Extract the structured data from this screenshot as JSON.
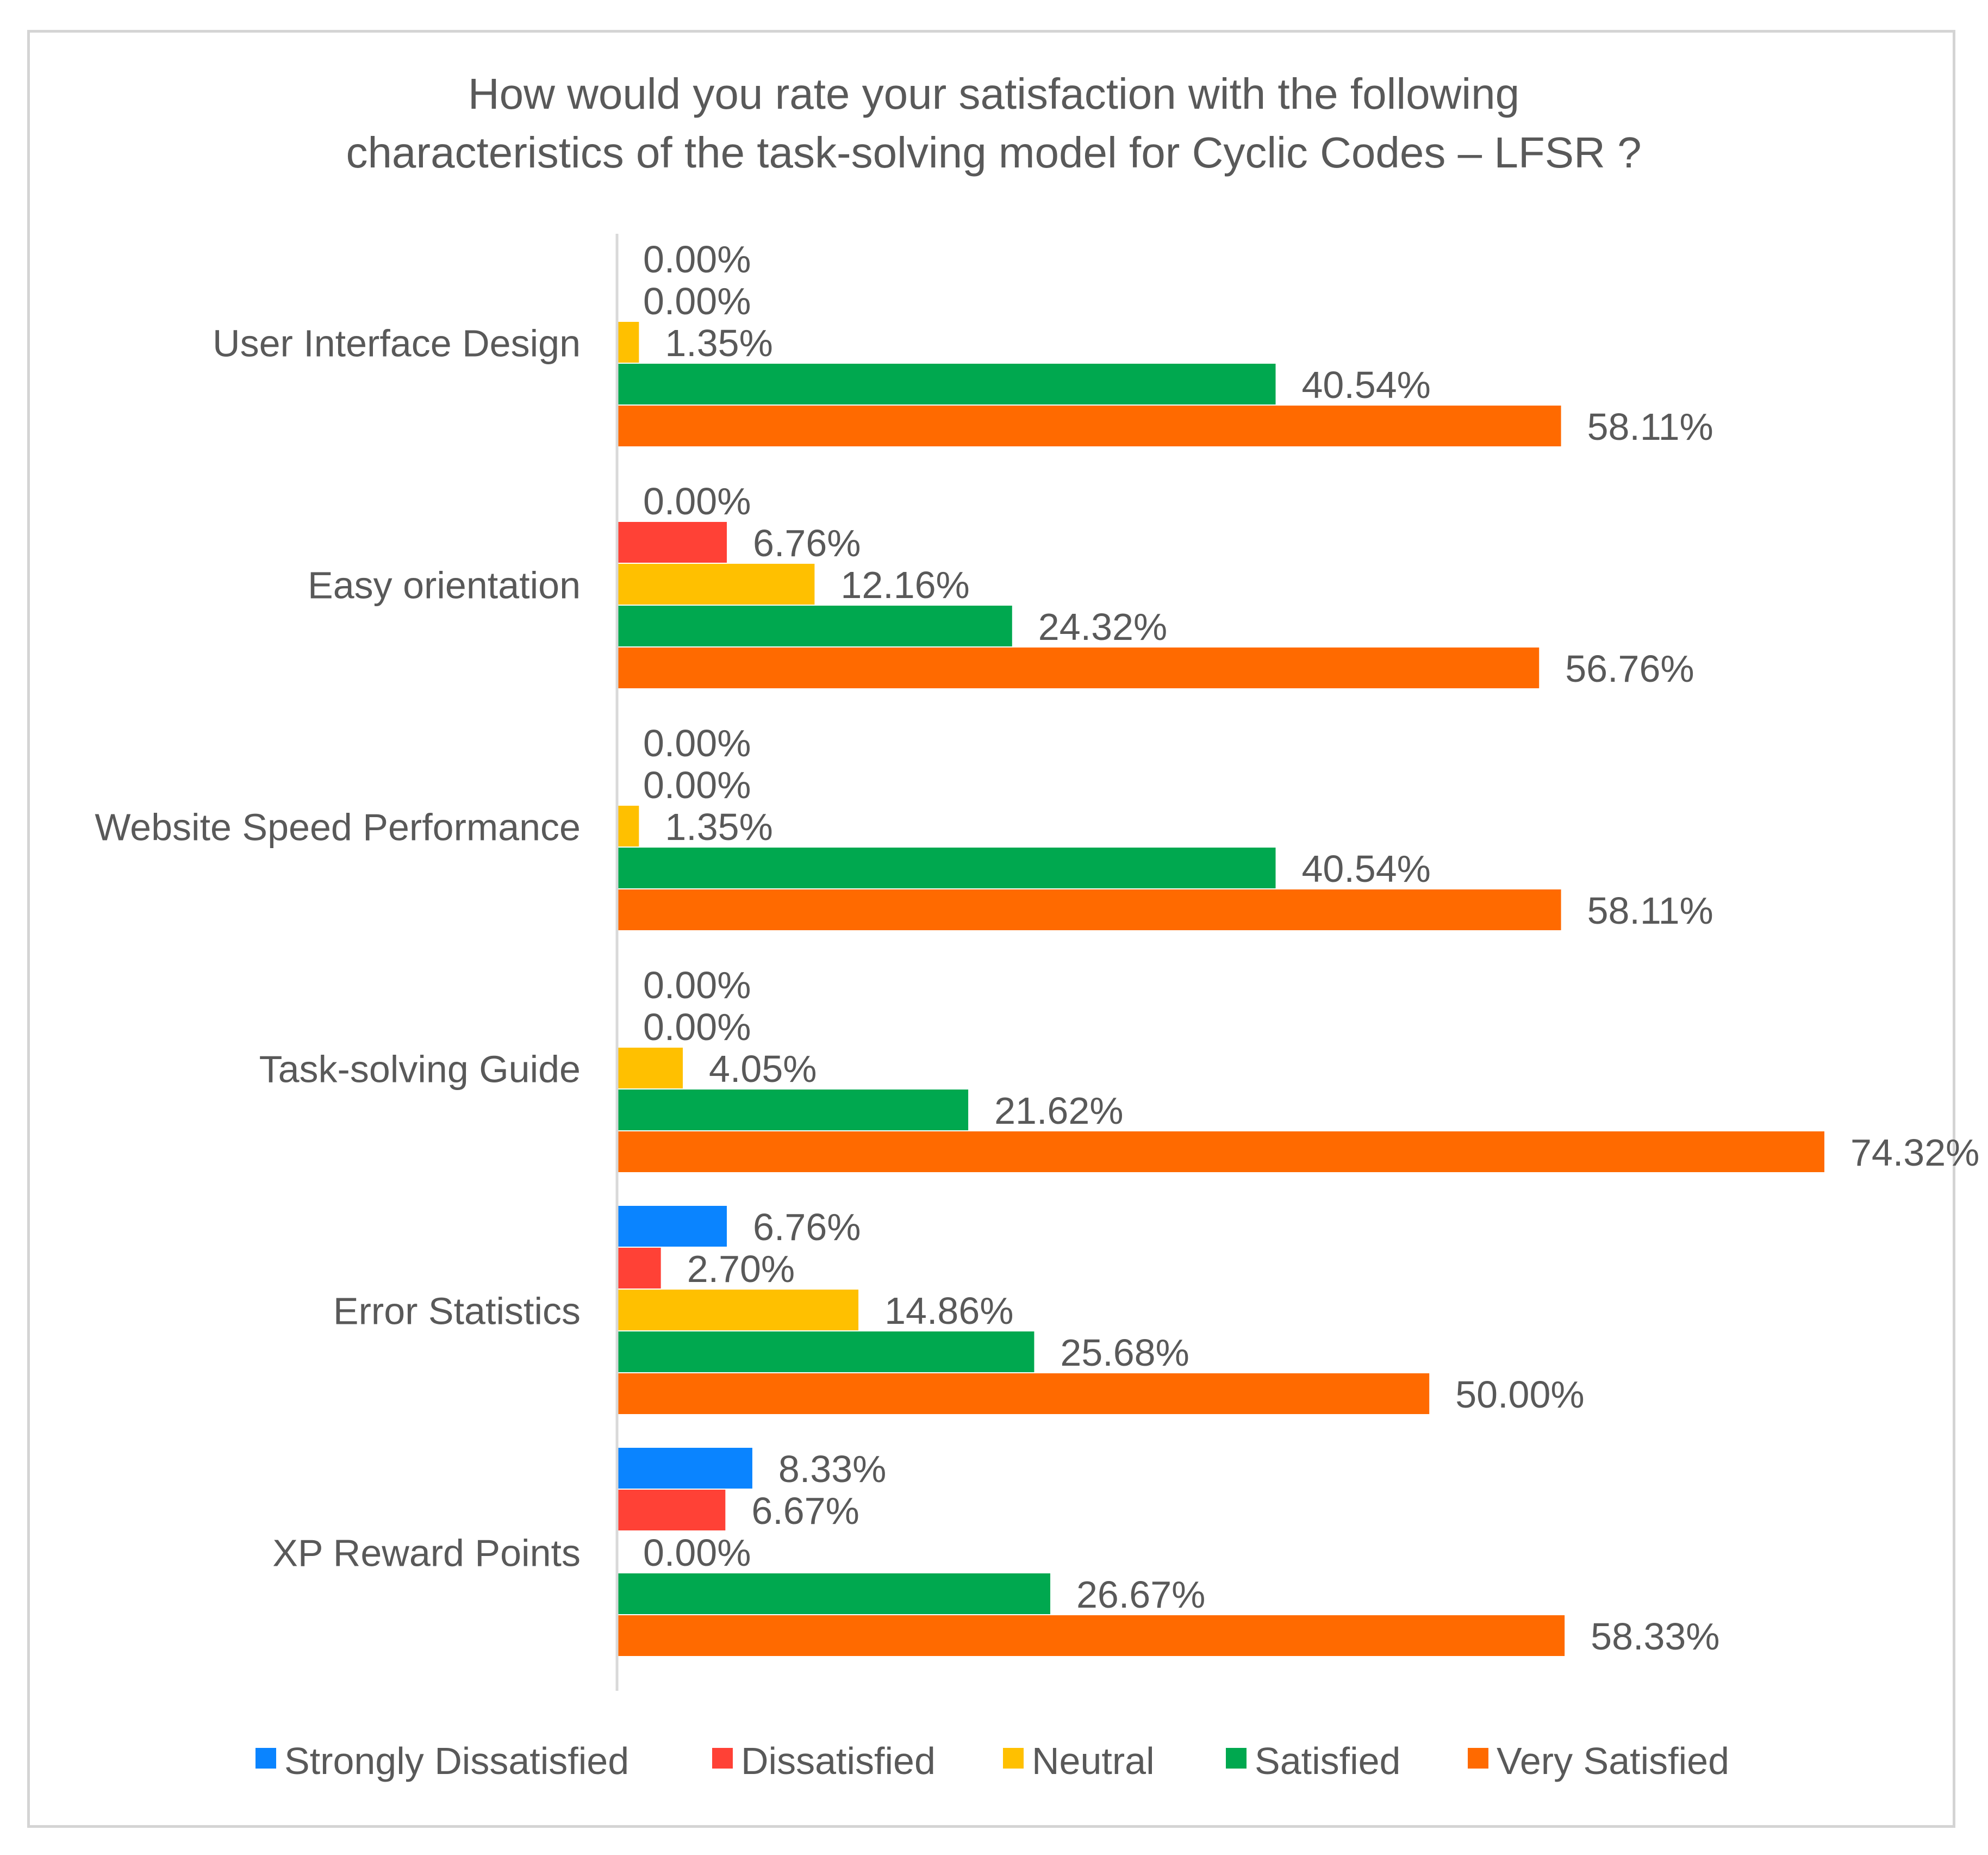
{
  "chart_data": {
    "type": "bar",
    "orientation": "horizontal",
    "title_lines": [
      "How would you rate your satisfaction with the following",
      "characteristics of the task-solving model for Cyclic Codes – LFSR ?"
    ],
    "categories": [
      "User Interface Design",
      "Easy orientation",
      "Website Speed Performance",
      "Task-solving Guide",
      "Error Statistics",
      "XP Reward Points"
    ],
    "series": [
      {
        "name": "Strongly Dissatisfied",
        "color": "#0a84ff",
        "values": [
          0.0,
          0.0,
          0.0,
          0.0,
          6.76,
          8.33
        ],
        "labels": [
          "0.00%",
          "0.00%",
          "0.00%",
          "0.00%",
          "6.76%",
          "8.33%"
        ]
      },
      {
        "name": "Dissatisfied",
        "color": "#ff4136",
        "values": [
          0.0,
          6.76,
          0.0,
          0.0,
          2.7,
          6.67
        ],
        "labels": [
          "0.00%",
          "6.76%",
          "0.00%",
          "0.00%",
          "2.70%",
          "6.67%"
        ]
      },
      {
        "name": "Neutral",
        "color": "#ffc000",
        "values": [
          1.35,
          12.16,
          1.35,
          4.05,
          14.86,
          0.0
        ],
        "labels": [
          "1.35%",
          "12.16%",
          "1.35%",
          "4.05%",
          "14.86%",
          "0.00%"
        ]
      },
      {
        "name": "Satisfied",
        "color": "#00a84f",
        "values": [
          40.54,
          24.32,
          40.54,
          21.62,
          25.68,
          26.67
        ],
        "labels": [
          "40.54%",
          "24.32%",
          "40.54%",
          "21.62%",
          "25.68%",
          "26.67%"
        ]
      },
      {
        "name": "Very Satisfied",
        "color": "#ff6a00",
        "values": [
          58.11,
          56.76,
          58.11,
          74.32,
          50.0,
          58.33
        ],
        "labels": [
          "58.11%",
          "56.76%",
          "58.11%",
          "74.32%",
          "50.00%",
          "58.33%"
        ]
      }
    ],
    "xlim": [
      0,
      74.32
    ],
    "grid": false,
    "legend": "bottom"
  }
}
